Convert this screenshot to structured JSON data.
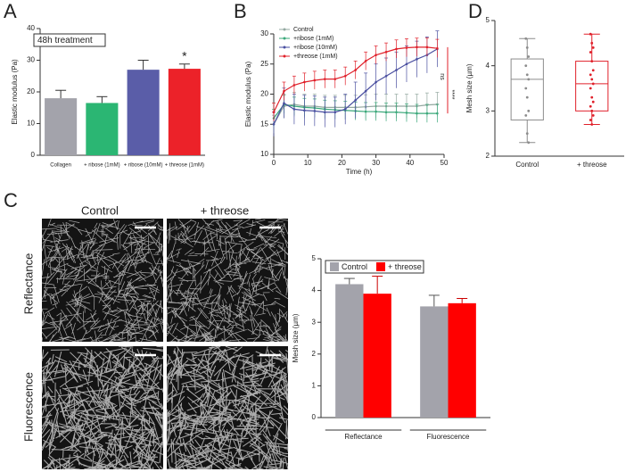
{
  "panel_labels": [
    "A",
    "B",
    "C",
    "D"
  ],
  "images": {
    "columns": [
      "Control",
      "+ threose"
    ],
    "rows": [
      "Reflectance",
      "Fluorescence"
    ]
  },
  "chart_data": [
    {
      "type": "bar",
      "title": "48h treatment",
      "ylabel": "Elastic modulus (Pa)",
      "categories": [
        "Collagen",
        "+ ribose (1mM)",
        "+ ribose (10mM)",
        "+ threose (1mM)"
      ],
      "values": [
        18,
        16.5,
        27,
        27.3
      ],
      "errors": [
        2.5,
        2,
        3,
        1.5
      ],
      "colors": [
        "#a3a3ab",
        "#2bb673",
        "#5a5da8",
        "#ec2229"
      ],
      "annotation": "*",
      "ylim": [
        0,
        40
      ],
      "yticks": [
        0,
        10,
        20,
        30,
        40
      ]
    },
    {
      "type": "line",
      "xlabel": "Time (h)",
      "ylabel": "Elastic modulus (Pa)",
      "x": [
        0,
        3,
        6,
        9,
        12,
        15,
        18,
        21,
        24,
        27,
        30,
        33,
        36,
        39,
        42,
        45,
        48
      ],
      "series": [
        {
          "name": "Control",
          "color": "#93a8a0",
          "values": [
            15,
            18,
            18.3,
            18,
            18,
            17.8,
            17.8,
            17.8,
            17.8,
            17.9,
            18,
            18,
            18,
            18,
            18,
            18.2,
            18.3
          ],
          "errors": [
            1.5,
            2,
            2,
            2,
            2,
            2,
            2,
            2,
            2,
            2,
            2,
            2,
            2,
            2,
            2,
            2,
            2
          ]
        },
        {
          "name": "+ribose (1mM)",
          "color": "#3aa87a",
          "values": [
            16,
            18.3,
            18,
            17.8,
            17.7,
            17.5,
            17.4,
            17.3,
            17.2,
            17.1,
            17.1,
            17,
            17,
            16.9,
            16.8,
            16.8,
            16.8
          ],
          "errors": [
            1.5,
            1.5,
            1.5,
            1.5,
            1.5,
            1.5,
            1.5,
            1.5,
            1.5,
            1.5,
            1.5,
            1.5,
            1.5,
            1.5,
            1.5,
            1.5,
            1.5
          ]
        },
        {
          "name": "+ribose (10mM)",
          "color": "#4a4fa0",
          "values": [
            15,
            18.5,
            17.5,
            17.3,
            17.2,
            17,
            17,
            17.5,
            19,
            20.5,
            22,
            23,
            24,
            25,
            25.8,
            26.5,
            27.5
          ],
          "errors": [
            2,
            2.5,
            2.5,
            2.5,
            2.5,
            2.5,
            2.5,
            2.5,
            3,
            3,
            3,
            3,
            3,
            3,
            3,
            3,
            3
          ]
        },
        {
          "name": "+threose (1mM)",
          "color": "#e0202a",
          "values": [
            17,
            20.5,
            21.5,
            22,
            22.3,
            22.5,
            22.5,
            23,
            24,
            25.5,
            26.5,
            27,
            27.5,
            27.7,
            27.8,
            27.8,
            27.6
          ],
          "errors": [
            1.5,
            1.5,
            1.5,
            1.5,
            1.5,
            1.5,
            1.5,
            1.5,
            1.5,
            1.5,
            1.5,
            1.5,
            1.5,
            1.5,
            1.5,
            1.5,
            1.5
          ]
        }
      ],
      "annotations": [
        "ns",
        "****"
      ],
      "xlim": [
        0,
        50
      ],
      "xticks": [
        0,
        10,
        20,
        30,
        40,
        50
      ],
      "ylim": [
        10,
        30
      ],
      "yticks": [
        10,
        15,
        20,
        25,
        30
      ],
      "legend": "top-left"
    },
    {
      "type": "box",
      "ylabel": "Mesh size (µm)",
      "categories": [
        "Control",
        "+ threose"
      ],
      "colors": [
        "#8c8c8c",
        "#e0202a"
      ],
      "boxes": [
        {
          "min": 2.3,
          "q1": 2.8,
          "median": 3.7,
          "q3": 4.15,
          "max": 4.6,
          "points": [
            4.6,
            4.4,
            4.2,
            4.0,
            3.8,
            3.7,
            3.5,
            3.3,
            3.0,
            2.9,
            2.5,
            2.3
          ]
        },
        {
          "min": 2.7,
          "q1": 3.0,
          "median": 3.6,
          "q3": 4.1,
          "max": 4.7,
          "points": [
            4.7,
            4.5,
            4.4,
            4.3,
            4.1,
            3.9,
            3.8,
            3.7,
            3.6,
            3.5,
            3.3,
            3.2,
            3.1,
            3.0,
            2.9,
            2.8,
            2.7
          ]
        }
      ],
      "ylim": [
        2,
        5
      ],
      "yticks": [
        2,
        3,
        4,
        5
      ]
    },
    {
      "type": "bar",
      "ylabel": "Mesh size (µm)",
      "categories": [
        "Reflectance",
        "Fluorescence"
      ],
      "series": [
        {
          "name": "Control",
          "color": "#a3a3ab",
          "values": [
            4.2,
            3.5
          ],
          "errors": [
            0.18,
            0.35
          ]
        },
        {
          "name": "+ threose",
          "color": "#ff0000",
          "values": [
            3.9,
            3.6
          ],
          "errors": [
            0.55,
            0.15
          ]
        }
      ],
      "ylim": [
        0,
        5
      ],
      "yticks": [
        0,
        1,
        2,
        3,
        4,
        5
      ],
      "legend": "top"
    }
  ]
}
